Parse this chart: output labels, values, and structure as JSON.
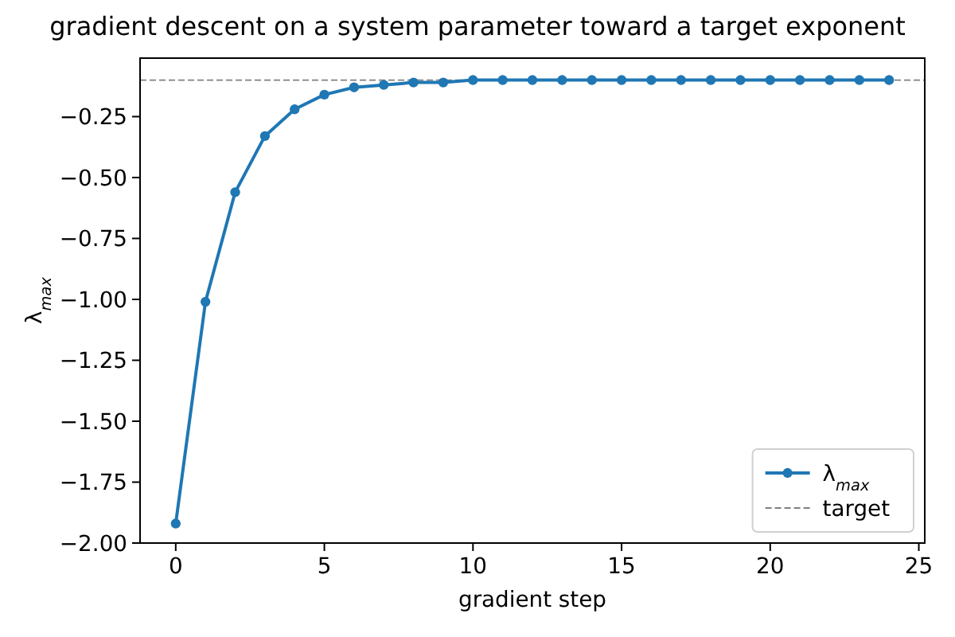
{
  "chart_data": {
    "type": "line",
    "title": "gradient descent on a system parameter toward a target exponent",
    "xlabel": "gradient step",
    "ylabel": "λ$_{max}$",
    "x": [
      0,
      1,
      2,
      3,
      4,
      5,
      6,
      7,
      8,
      9,
      10,
      11,
      12,
      13,
      14,
      15,
      16,
      17,
      18,
      19,
      20,
      21,
      22,
      23,
      24
    ],
    "series": [
      {
        "name": "λ$_{max}$",
        "color": "#1f77b4",
        "values": [
          -1.92,
          -1.01,
          -0.56,
          -0.33,
          -0.22,
          -0.16,
          -0.13,
          -0.12,
          -0.11,
          -0.11,
          -0.1,
          -0.1,
          -0.1,
          -0.1,
          -0.1,
          -0.1,
          -0.1,
          -0.1,
          -0.1,
          -0.1,
          -0.1,
          -0.1,
          -0.1,
          -0.1,
          -0.1
        ]
      }
    ],
    "xlim": [
      -1.2,
      25.2
    ],
    "ylim": [
      -2.0,
      -0.01
    ],
    "xticks": [
      0,
      5,
      10,
      15,
      20,
      25
    ],
    "yticks": [
      {
        "value": -2.0,
        "label": "−2.00"
      },
      {
        "value": -1.75,
        "label": "−1.75"
      },
      {
        "value": -1.5,
        "label": "−1.50"
      },
      {
        "value": -1.25,
        "label": "−1.25"
      },
      {
        "value": -1.0,
        "label": "−1.00"
      },
      {
        "value": -0.75,
        "label": "−0.75"
      },
      {
        "value": -0.5,
        "label": "−0.50"
      },
      {
        "value": -0.25,
        "label": "−0.25"
      }
    ],
    "ref_lines": [
      {
        "axis": "y",
        "value": -0.1,
        "label": "target",
        "color": "#808080",
        "line_style": "dashed"
      }
    ],
    "legend": "bottom right",
    "marker": "circle",
    "line_style": "solid"
  }
}
